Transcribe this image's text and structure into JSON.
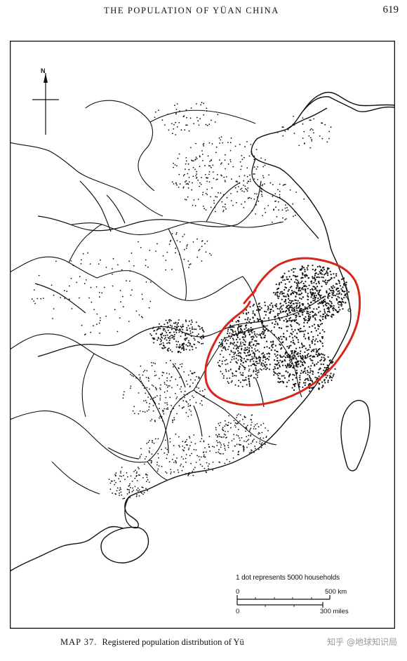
{
  "running_head": {
    "title": "THE POPULATION OF YÜAN CHINA",
    "page_number": "619"
  },
  "map": {
    "north_label": "N",
    "legend_note": "1 dot represents 5000 households",
    "scale": {
      "km_zero": "0",
      "km_label": "500 km",
      "miles_zero": "0",
      "miles_label": "300 miles"
    },
    "annotation_color": "#d8261c"
  },
  "caption": {
    "map_number": "MAP 37.",
    "text": "Registered population distribution of Yü"
  },
  "watermark": "知乎 @地球知识局"
}
